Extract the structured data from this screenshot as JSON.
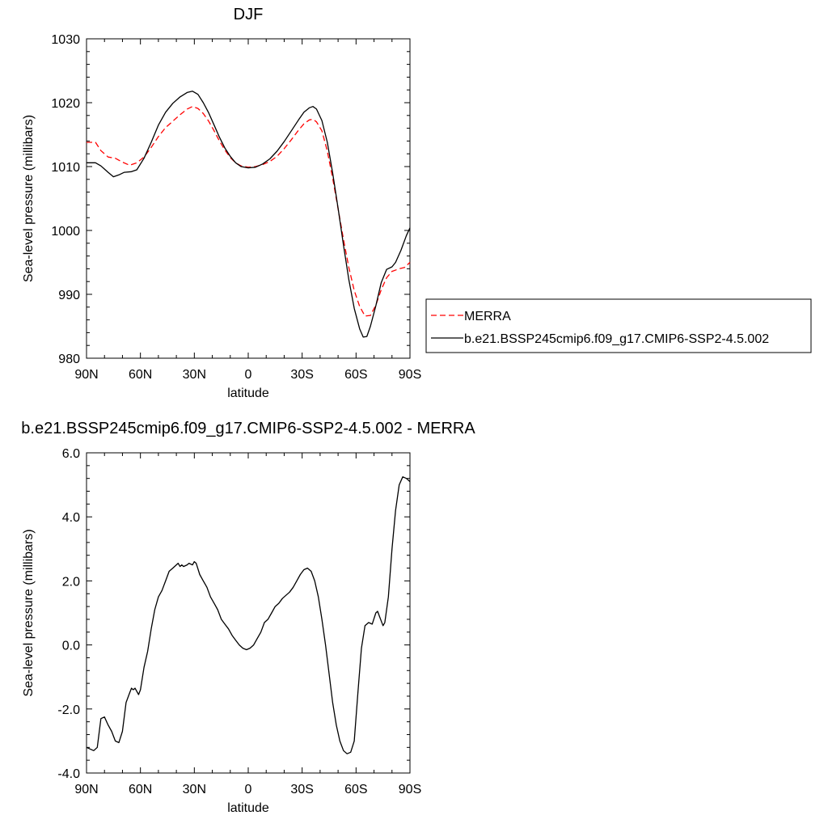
{
  "chart_data": [
    {
      "type": "line",
      "title": "DJF",
      "xlabel": "latitude",
      "ylabel": "Sea-level pressure (millibars)",
      "xlim": [
        90,
        -90
      ],
      "ylim": [
        980,
        1030
      ],
      "x_ticks": [
        90,
        60,
        30,
        0,
        -30,
        -60,
        -90
      ],
      "x_tick_labels": [
        "90N",
        "60N",
        "30N",
        "0",
        "30S",
        "60S",
        "90S"
      ],
      "y_ticks": [
        980,
        990,
        1000,
        1010,
        1020,
        1030
      ],
      "y_tick_labels": [
        "980",
        "990",
        "1000",
        "1010",
        "1020",
        "1030"
      ],
      "grid": false,
      "legend": "right",
      "series": [
        {
          "name": "MERRA",
          "color": "#ff0000",
          "dash": "dashed",
          "points": [
            [
              90,
              1013.8
            ],
            [
              85,
              1013.8
            ],
            [
              82,
              1012.5
            ],
            [
              78,
              1011.5
            ],
            [
              74,
              1011.3
            ],
            [
              70,
              1010.7
            ],
            [
              66,
              1010.2
            ],
            [
              62,
              1010.6
            ],
            [
              58,
              1011.5
            ],
            [
              54,
              1013.0
            ],
            [
              50,
              1014.7
            ],
            [
              46,
              1016.1
            ],
            [
              42,
              1017.1
            ],
            [
              38,
              1018.1
            ],
            [
              34,
              1019.0
            ],
            [
              31,
              1019.4
            ],
            [
              28,
              1019.1
            ],
            [
              25,
              1018.3
            ],
            [
              22,
              1017.1
            ],
            [
              19,
              1015.6
            ],
            [
              16,
              1014.0
            ],
            [
              13,
              1012.6
            ],
            [
              10,
              1011.4
            ],
            [
              7,
              1010.6
            ],
            [
              4,
              1010.1
            ],
            [
              0,
              1009.9
            ],
            [
              -4,
              1010.0
            ],
            [
              -8,
              1010.3
            ],
            [
              -12,
              1010.8
            ],
            [
              -16,
              1011.6
            ],
            [
              -20,
              1012.8
            ],
            [
              -24,
              1014.2
            ],
            [
              -28,
              1015.7
            ],
            [
              -31,
              1016.7
            ],
            [
              -34,
              1017.3
            ],
            [
              -36,
              1017.4
            ],
            [
              -38,
              1017.0
            ],
            [
              -41,
              1015.6
            ],
            [
              -44,
              1012.4
            ],
            [
              -47,
              1008.2
            ],
            [
              -50,
              1003.4
            ],
            [
              -53,
              998.6
            ],
            [
              -56,
              994.2
            ],
            [
              -59,
              990.6
            ],
            [
              -62,
              988.1
            ],
            [
              -65,
              986.6
            ],
            [
              -68,
              986.7
            ],
            [
              -71,
              988.3
            ],
            [
              -74,
              990.7
            ],
            [
              -77,
              992.6
            ],
            [
              -80,
              993.6
            ],
            [
              -84,
              994.0
            ],
            [
              -87,
              994.2
            ],
            [
              -90,
              995.0
            ]
          ]
        },
        {
          "name": "b.e21.BSSP245cmip6.f09_g17.CMIP6-SSP2-4.5.002",
          "color": "#000000",
          "dash": "solid",
          "points": [
            [
              90,
              1010.6
            ],
            [
              85,
              1010.6
            ],
            [
              82,
              1010.1
            ],
            [
              78,
              1009.1
            ],
            [
              75,
              1008.4
            ],
            [
              72,
              1008.7
            ],
            [
              69,
              1009.1
            ],
            [
              65,
              1009.2
            ],
            [
              62,
              1009.5
            ],
            [
              58,
              1011.3
            ],
            [
              54,
              1013.8
            ],
            [
              50,
              1016.5
            ],
            [
              46,
              1018.5
            ],
            [
              42,
              1019.9
            ],
            [
              38,
              1020.9
            ],
            [
              34,
              1021.6
            ],
            [
              31,
              1021.8
            ],
            [
              28,
              1021.3
            ],
            [
              25,
              1020.0
            ],
            [
              22,
              1018.4
            ],
            [
              19,
              1016.5
            ],
            [
              16,
              1014.6
            ],
            [
              13,
              1012.9
            ],
            [
              10,
              1011.6
            ],
            [
              7,
              1010.6
            ],
            [
              4,
              1010.0
            ],
            [
              0,
              1009.8
            ],
            [
              -4,
              1009.9
            ],
            [
              -8,
              1010.4
            ],
            [
              -12,
              1011.2
            ],
            [
              -16,
              1012.4
            ],
            [
              -20,
              1013.9
            ],
            [
              -24,
              1015.6
            ],
            [
              -28,
              1017.3
            ],
            [
              -31,
              1018.5
            ],
            [
              -34,
              1019.2
            ],
            [
              -36,
              1019.4
            ],
            [
              -38,
              1019.0
            ],
            [
              -41,
              1017.2
            ],
            [
              -44,
              1013.8
            ],
            [
              -47,
              1009.0
            ],
            [
              -50,
              1003.5
            ],
            [
              -53,
              997.7
            ],
            [
              -56,
              992.3
            ],
            [
              -59,
              987.8
            ],
            [
              -62,
              984.6
            ],
            [
              -64,
              983.3
            ],
            [
              -66,
              983.4
            ],
            [
              -68,
              985.0
            ],
            [
              -71,
              988.2
            ],
            [
              -74,
              991.8
            ],
            [
              -77,
              993.9
            ],
            [
              -80,
              994.3
            ],
            [
              -82,
              995.0
            ],
            [
              -85,
              996.9
            ],
            [
              -88,
              999.2
            ],
            [
              -90,
              1000.4
            ]
          ]
        }
      ]
    },
    {
      "type": "line",
      "title": "b.e21.BSSP245cmip6.f09_g17.CMIP6-SSP2-4.5.002 - MERRA",
      "xlabel": "latitude",
      "ylabel": "Sea-level pressure (millibars)",
      "xlim": [
        90,
        -90
      ],
      "ylim": [
        -4,
        6
      ],
      "x_ticks": [
        90,
        60,
        30,
        0,
        -30,
        -60,
        -90
      ],
      "x_tick_labels": [
        "90N",
        "60N",
        "30N",
        "0",
        "30S",
        "60S",
        "90S"
      ],
      "y_ticks": [
        -4,
        -2,
        0,
        2,
        4,
        6
      ],
      "y_tick_labels": [
        "-4.0",
        "-2.0",
        "0.0",
        "2.0",
        "4.0",
        "6.0"
      ],
      "grid": false,
      "series": [
        {
          "color": "#000000",
          "dash": "solid",
          "points": [
            [
              90,
              -3.2
            ],
            [
              88,
              -3.25
            ],
            [
              86,
              -3.3
            ],
            [
              84,
              -3.2
            ],
            [
              82,
              -2.3
            ],
            [
              80,
              -2.25
            ],
            [
              78,
              -2.5
            ],
            [
              76,
              -2.7
            ],
            [
              74,
              -3.0
            ],
            [
              72,
              -3.05
            ],
            [
              70,
              -2.7
            ],
            [
              68,
              -1.8
            ],
            [
              66,
              -1.5
            ],
            [
              65,
              -1.35
            ],
            [
              64,
              -1.4
            ],
            [
              63,
              -1.35
            ],
            [
              61,
              -1.55
            ],
            [
              60,
              -1.4
            ],
            [
              58,
              -0.7
            ],
            [
              56,
              -0.2
            ],
            [
              54,
              0.5
            ],
            [
              52,
              1.1
            ],
            [
              50,
              1.5
            ],
            [
              48,
              1.7
            ],
            [
              46,
              2.0
            ],
            [
              44,
              2.3
            ],
            [
              42,
              2.4
            ],
            [
              40,
              2.5
            ],
            [
              39,
              2.55
            ],
            [
              38,
              2.45
            ],
            [
              37,
              2.5
            ],
            [
              36,
              2.45
            ],
            [
              34,
              2.5
            ],
            [
              33,
              2.55
            ],
            [
              31,
              2.5
            ],
            [
              30,
              2.6
            ],
            [
              29,
              2.55
            ],
            [
              27,
              2.2
            ],
            [
              25,
              2.0
            ],
            [
              23,
              1.8
            ],
            [
              21,
              1.5
            ],
            [
              19,
              1.3
            ],
            [
              17,
              1.1
            ],
            [
              15,
              0.8
            ],
            [
              13,
              0.65
            ],
            [
              11,
              0.5
            ],
            [
              9,
              0.3
            ],
            [
              7,
              0.15
            ],
            [
              5,
              0.0
            ],
            [
              3,
              -0.1
            ],
            [
              1,
              -0.15
            ],
            [
              -1,
              -0.1
            ],
            [
              -3,
              0.0
            ],
            [
              -5,
              0.2
            ],
            [
              -7,
              0.4
            ],
            [
              -9,
              0.7
            ],
            [
              -11,
              0.8
            ],
            [
              -13,
              1.0
            ],
            [
              -15,
              1.2
            ],
            [
              -17,
              1.3
            ],
            [
              -19,
              1.45
            ],
            [
              -21,
              1.55
            ],
            [
              -23,
              1.65
            ],
            [
              -25,
              1.8
            ],
            [
              -27,
              2.0
            ],
            [
              -29,
              2.2
            ],
            [
              -31,
              2.35
            ],
            [
              -33,
              2.4
            ],
            [
              -35,
              2.3
            ],
            [
              -37,
              2.0
            ],
            [
              -39,
              1.5
            ],
            [
              -41,
              0.8
            ],
            [
              -43,
              0.0
            ],
            [
              -45,
              -0.9
            ],
            [
              -47,
              -1.8
            ],
            [
              -49,
              -2.5
            ],
            [
              -51,
              -3.0
            ],
            [
              -53,
              -3.3
            ],
            [
              -55,
              -3.4
            ],
            [
              -57,
              -3.35
            ],
            [
              -59,
              -3.0
            ],
            [
              -61,
              -1.5
            ],
            [
              -63,
              -0.1
            ],
            [
              -65,
              0.6
            ],
            [
              -67,
              0.7
            ],
            [
              -69,
              0.65
            ],
            [
              -71,
              1.0
            ],
            [
              -72,
              1.05
            ],
            [
              -73,
              0.9
            ],
            [
              -75,
              0.6
            ],
            [
              -76,
              0.7
            ],
            [
              -78,
              1.5
            ],
            [
              -80,
              3.0
            ],
            [
              -82,
              4.2
            ],
            [
              -84,
              5.0
            ],
            [
              -86,
              5.25
            ],
            [
              -88,
              5.2
            ],
            [
              -90,
              5.1
            ]
          ]
        }
      ]
    }
  ]
}
